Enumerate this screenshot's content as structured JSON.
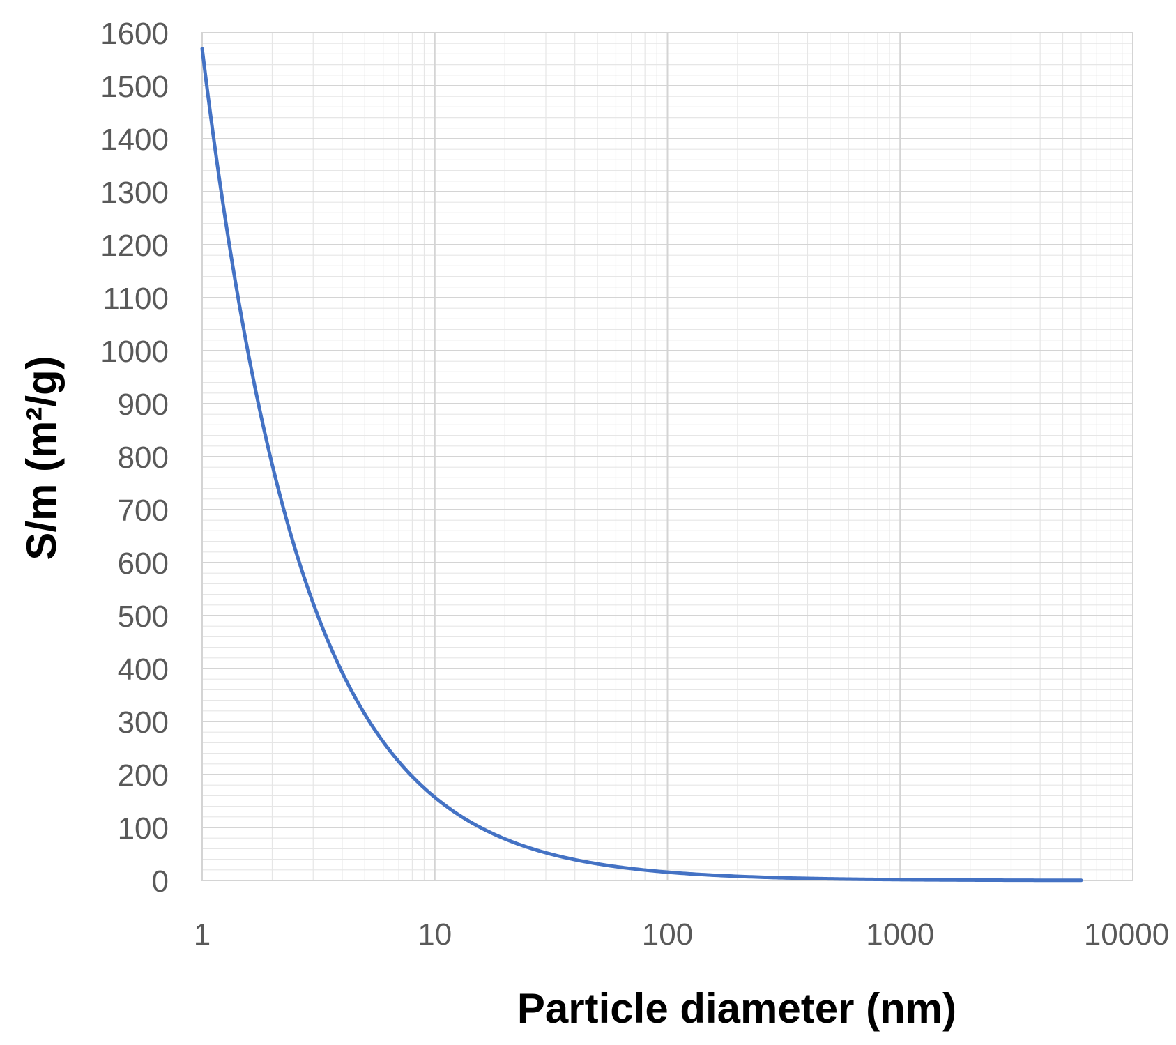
{
  "chart_data": {
    "type": "line",
    "title": "",
    "xlabel": "Particle diameter (nm)",
    "ylabel": "S/m (m²/g)",
    "x_scale": "log",
    "xlim": [
      1,
      10000
    ],
    "ylim": [
      0,
      1600
    ],
    "x_ticks": [
      "1",
      "10",
      "100",
      "1000",
      "10000"
    ],
    "y_ticks": [
      "0",
      "100",
      "200",
      "300",
      "400",
      "500",
      "600",
      "700",
      "800",
      "900",
      "1000",
      "1100",
      "1200",
      "1300",
      "1400",
      "1500",
      "1600"
    ],
    "grid": true,
    "minor_grid": true,
    "series": [
      {
        "color": "#4472c4",
        "x": [
          1,
          1.2,
          1.5,
          2,
          2.5,
          3,
          4,
          5,
          6,
          8,
          10,
          15,
          20,
          30,
          50,
          100,
          200,
          500,
          1000,
          2000,
          6000
        ],
        "y": [
          1570,
          1310,
          1050,
          785,
          630,
          525,
          393,
          315,
          262,
          196,
          157,
          105,
          79,
          52,
          31,
          16,
          8,
          3,
          1.6,
          0.8,
          0.3
        ]
      }
    ]
  }
}
